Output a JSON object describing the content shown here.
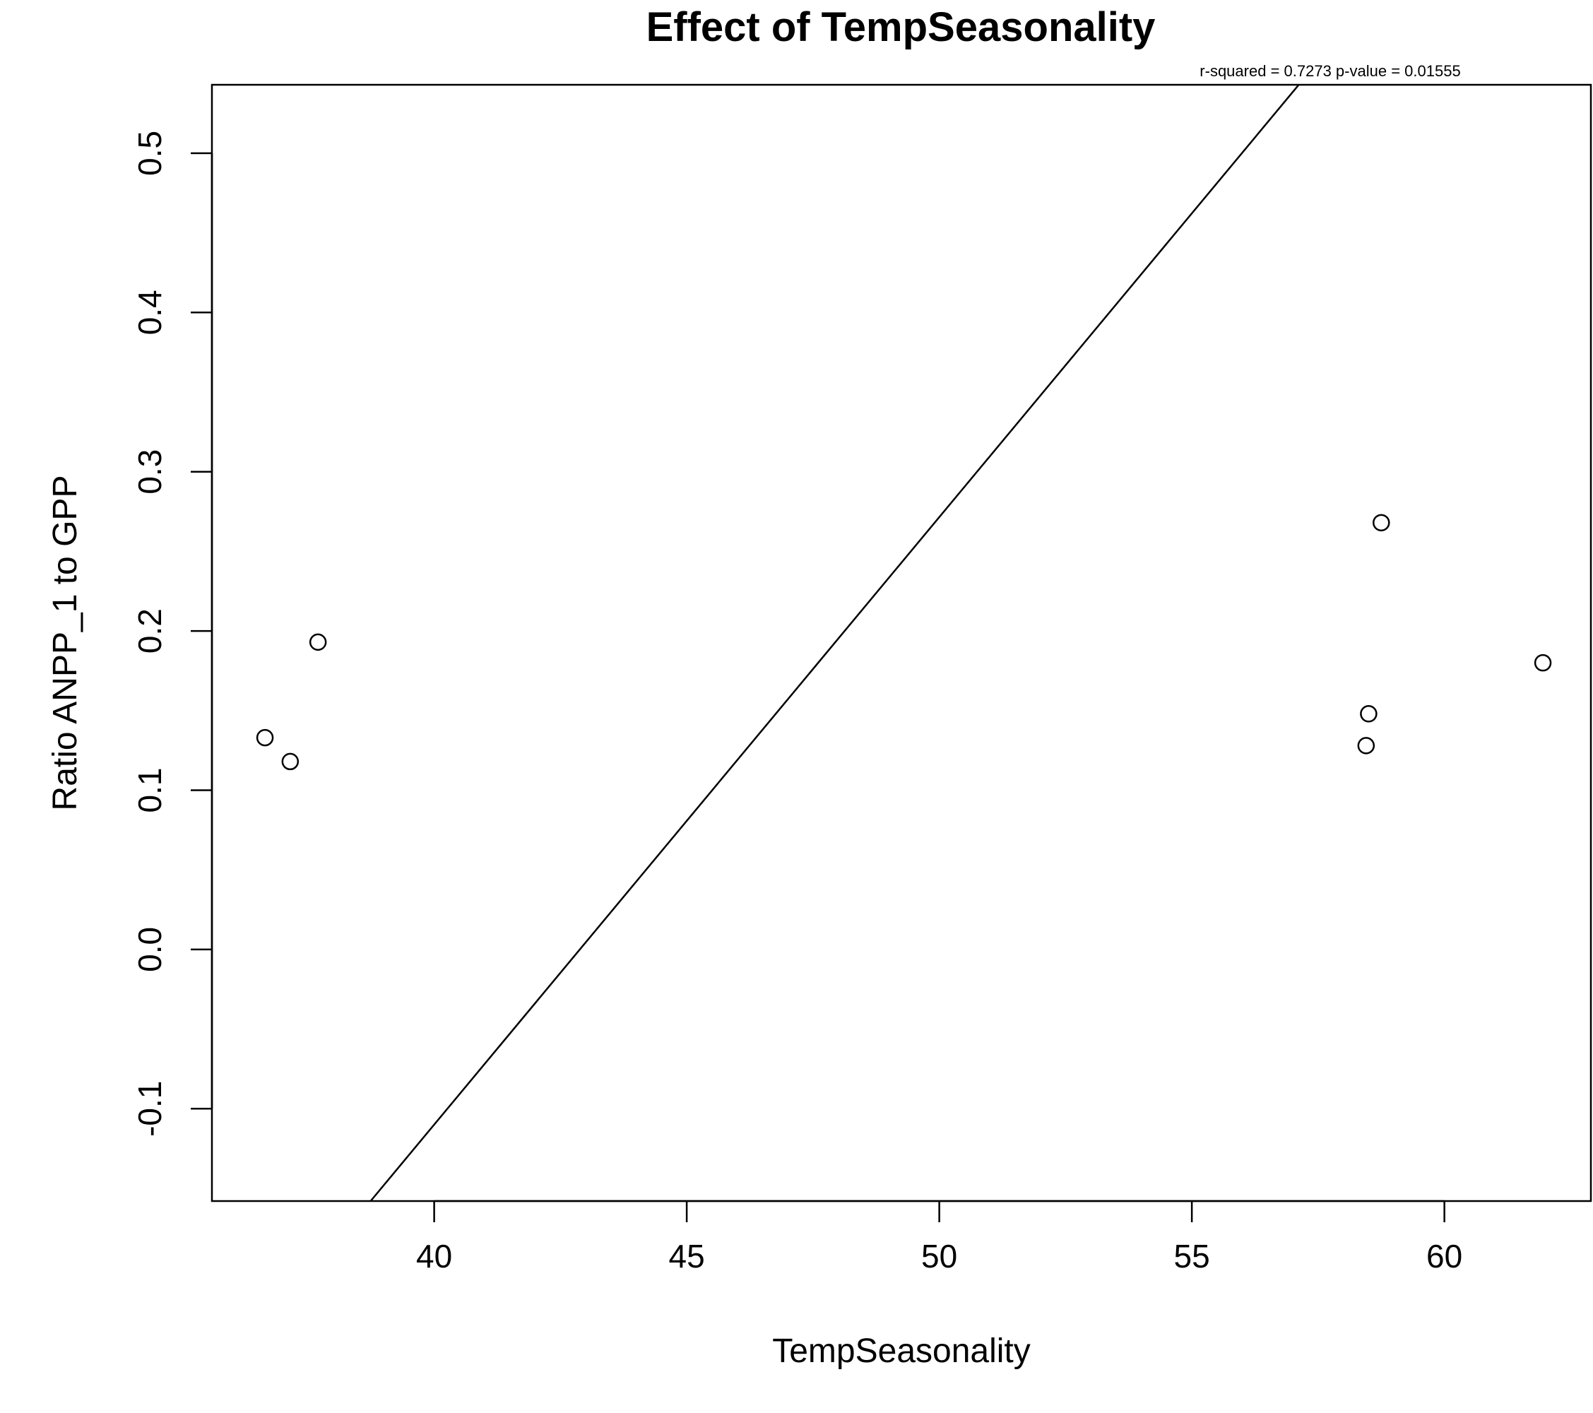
{
  "chart_data": {
    "type": "scatter",
    "title": "Effect of TempSeasonality",
    "subtitle": "r-squared =  0.7273 p-value =  0.01555",
    "xlabel": "TempSeasonality",
    "ylabel": "Ratio ANPP_1 to GPP",
    "xlim": [
      35.6,
      62.9
    ],
    "ylim": [
      -0.158,
      0.543
    ],
    "xticks": [
      40,
      45,
      50,
      55,
      60
    ],
    "xtick_labels": [
      "40",
      "45",
      "50",
      "55",
      "60"
    ],
    "yticks": [
      -0.1,
      0.0,
      0.1,
      0.2,
      0.3,
      0.4,
      0.5
    ],
    "ytick_labels": [
      "-0.1",
      "0.0",
      "0.1",
      "0.2",
      "0.3",
      "0.4",
      "0.5"
    ],
    "grid": false,
    "marker": "open-circle",
    "color": "#000000",
    "points": [
      {
        "x": 36.65,
        "y": 0.133
      },
      {
        "x": 37.15,
        "y": 0.118
      },
      {
        "x": 37.7,
        "y": 0.193
      },
      {
        "x": 58.45,
        "y": 0.128
      },
      {
        "x": 58.5,
        "y": 0.148
      },
      {
        "x": 58.75,
        "y": 0.268
      },
      {
        "x": 61.95,
        "y": 0.18
      }
    ],
    "regression_line": {
      "slope": 0.03815,
      "intercept": -1.636
    }
  }
}
